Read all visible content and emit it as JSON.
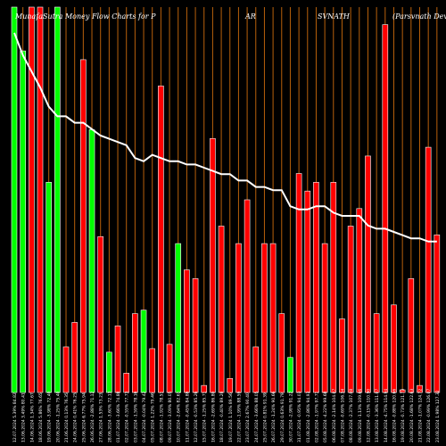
{
  "title": {
    "part1": "MunafaSutra Money Flow  Charts for P",
    "part2": "AR",
    "part3": "SVNATH",
    "part4": "(Parsvnath Devel"
  },
  "colors": {
    "background": "#000000",
    "bullish": "#00ff00",
    "bearish": "#ff0000",
    "bar_border": "#ffffff",
    "grid": "#b8600b",
    "price_line": "#ffffff",
    "text": "#ffffff"
  },
  "chart_data": {
    "type": "bar",
    "categories": [
      "12.07.2024 5.39% 84.82",
      "13.06.2024 3.49% 80.41",
      "14.06.2024 1.34% 77.67",
      "18.06.2024 5.86% 76.65",
      "19.06.2024 -3.98% 72.40",
      "20.06.2024 -1.25% 75.40",
      "21.06.2024 0.13% 76.35",
      "24.06.2024 0.41% 76.25",
      "25.06.2024 6.77% 75.94",
      "26.06.2024 -2.88% 71.12",
      "27.06.2024 1.53% 73.23",
      "28.06.2024 -3.60% 72.13",
      "01.07.2024 -3.66% 74.88",
      "02.07.2024 -0.55% 77.73",
      "03.07.2024 -1.59% 78.16",
      "04.07.2024 -0.04% 79.42",
      "05.07.2024 1.22% 79.46",
      "08.07.2024 -1.92% 78.51",
      "09.07.2024 -3.09% 80.05",
      "10.07.2024 -2.64% 82.61",
      "11.07.2024 -0.45% 84.88",
      "12.07.2024 -0.53% 85.26",
      "15.07.2024 -1.25% 85.71",
      "16.07.2024 -2.69% 86.80",
      "18.07.2024 -0.40% 89.20",
      "19.07.2024 1.10% 89.56",
      "22.07.2024 -1.99% 88.59",
      "23.07.2024 2.67% 90.40",
      "24.07.2024 -3.66% 88.05",
      "25.07.2024 0.81% 91.39",
      "26.07.2024 -1.24% 90.66",
      "29.07.2024 0.63% 91.79",
      "30.07.2024 -2.98% 91.22",
      "31.07.2024 -0.95% 94.03",
      "01.08.2024 -2.86% 94.93",
      "02.08.2024 -1.97% 97.71",
      "05.08.2024 -4.22% 99.68",
      "06.08.2024 -2.14% 104.07",
      "07.08.2024 -0.69% 106.34",
      "08.08.2024 -2.37% 107.08",
      "09.08.2024 -1.13% 109.66",
      "12.08.2024 -0.15% 110.90",
      "13.08.2024 -3.36% 111.07",
      "14.08.2024 -4.75% 114.94",
      "16.08.2024 -0.88% 120.66",
      "19.08.2024 -0.73% 121.73",
      "20.08.2024 -1.68% 122.63",
      "21.08.2024 -1.07% 124.72",
      "22.08.2024 -0.99% 126.07",
      "23.08.2024 1.98% 127.32"
    ],
    "flow": [
      "up",
      "up",
      "down",
      "down",
      "up",
      "up",
      "down",
      "down",
      "down",
      "up",
      "down",
      "up",
      "down",
      "down",
      "down",
      "up",
      "down",
      "down",
      "down",
      "up",
      "down",
      "down",
      "down",
      "down",
      "down",
      "down",
      "down",
      "down",
      "down",
      "down",
      "down",
      "down",
      "up",
      "down",
      "down",
      "down",
      "down",
      "down",
      "down",
      "down",
      "down",
      "down",
      "down",
      "down",
      "down",
      "down",
      "down",
      "down",
      "down",
      "down"
    ],
    "values": [
      760,
      390,
      1350,
      1040,
      240,
      500,
      52,
      80,
      380,
      300,
      178,
      46,
      76,
      22,
      90,
      94,
      50,
      350,
      55,
      170,
      140,
      130,
      8,
      290,
      190,
      16,
      170,
      220,
      52,
      170,
      170,
      90,
      40,
      250,
      230,
      240,
      170,
      240,
      84,
      190,
      210,
      270,
      90,
      420,
      100,
      3,
      130,
      8,
      280,
      180
    ],
    "price": [
      112,
      105,
      100,
      95,
      89,
      86,
      86,
      84,
      84,
      82,
      80,
      79,
      78,
      77,
      73,
      72,
      74,
      73,
      72,
      72,
      71,
      71,
      70,
      69,
      68,
      68,
      66,
      66,
      64,
      64,
      63,
      63,
      58,
      57,
      57,
      58,
      58,
      56,
      55,
      55,
      55,
      52,
      51,
      51,
      50,
      49,
      48,
      48,
      47,
      47
    ],
    "xlabel": "",
    "ylabel": ""
  }
}
